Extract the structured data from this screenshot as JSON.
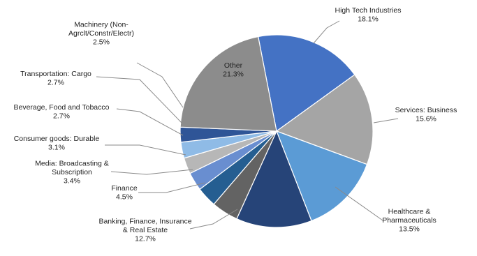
{
  "chart_data": {
    "type": "pie",
    "title": "",
    "slices": [
      {
        "name": "High Tech Industries",
        "label_lines": [
          "High Tech Industries"
        ],
        "pct_label": "18.1%",
        "value": 18.1,
        "color": "#4472c4"
      },
      {
        "name": "Services: Business",
        "label_lines": [
          "Services: Business"
        ],
        "pct_label": "15.6%",
        "value": 15.6,
        "color": "#a5a5a5"
      },
      {
        "name": "Healthcare & Pharmaceuticals",
        "label_lines": [
          "Healthcare &",
          "Pharmaceuticals"
        ],
        "pct_label": "13.5%",
        "value": 13.5,
        "color": "#5b9bd5"
      },
      {
        "name": "Banking, Finance, Insurance & Real Estate",
        "label_lines": [
          "Banking, Finance, Insurance",
          "& Real Estate"
        ],
        "pct_label": "12.7%",
        "value": 12.7,
        "color": "#264478"
      },
      {
        "name": "Finance",
        "label_lines": [
          "Finance"
        ],
        "pct_label": "4.5%",
        "value": 4.5,
        "color": "#636363"
      },
      {
        "name": "Media: Broadcasting & Subscription",
        "label_lines": [
          "Media: Broadcasting &",
          "Subscription"
        ],
        "pct_label": "3.4%",
        "value": 3.4,
        "color": "#255e91"
      },
      {
        "name": "Consumer goods: Durable",
        "label_lines": [
          "Consumer goods: Durable"
        ],
        "pct_label": "3.1%",
        "value": 3.1,
        "color": "#698ed0"
      },
      {
        "name": "Beverage, Food and Tobacco",
        "label_lines": [
          "Beverage, Food and Tobacco"
        ],
        "pct_label": "2.7%",
        "value": 2.7,
        "color": "#b7b7b7"
      },
      {
        "name": "Transportation: Cargo",
        "label_lines": [
          "Transportation: Cargo"
        ],
        "pct_label": "2.7%",
        "value": 2.7,
        "color": "#8fbbe6"
      },
      {
        "name": "Machinery (Non-Agrclt/Constr/Electr)",
        "label_lines": [
          "Machinery (Non-",
          "Agrclt/Constr/Electr)"
        ],
        "pct_label": "2.5%",
        "value": 2.5,
        "color": "#2f5597"
      },
      {
        "name": "Other",
        "label_lines": [
          "Other"
        ],
        "pct_label": "21.3%",
        "value": 21.3,
        "color": "#8c8c8c"
      }
    ]
  }
}
